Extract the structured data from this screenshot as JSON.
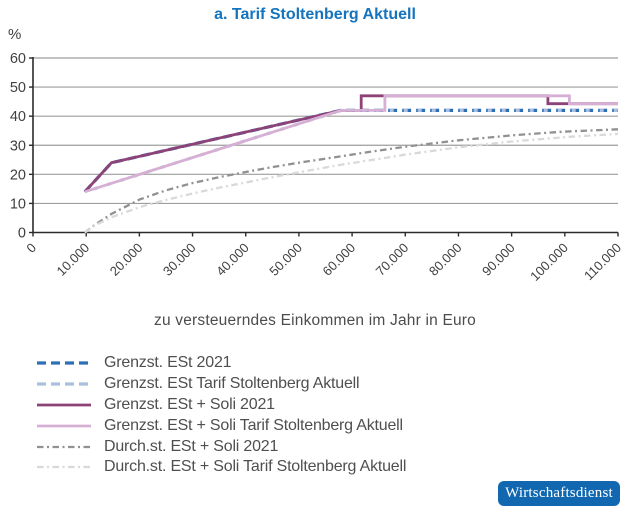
{
  "title": "a. Tarif Stoltenberg Aktuell",
  "y_unit": "%",
  "xlabel": "zu versteuerndes Einkommen im Jahr in Euro",
  "badge": "Wirtschaftsdienst",
  "colors": {
    "title": "#1474bd",
    "badge_bg": "#1168b1",
    "axis": "#2b2b2b",
    "grid": "#9e9e9e",
    "tick_text": "#3f3f3f",
    "legend_text": "#4f4f4f"
  },
  "chart_data": {
    "type": "line",
    "title": "a. Tarif Stoltenberg Aktuell",
    "xlabel": "zu versteuerndes Einkommen im Jahr in Euro",
    "ylabel": "%",
    "xlim": [
      0,
      110000
    ],
    "ylim": [
      0,
      60
    ],
    "x_tick_values": [
      0,
      10000,
      20000,
      30000,
      40000,
      50000,
      60000,
      70000,
      80000,
      90000,
      100000,
      110000
    ],
    "x_tick_labels": [
      "0",
      "10.000",
      "20.000",
      "30.000",
      "40.000",
      "50.000",
      "60.000",
      "70.000",
      "80.000",
      "90.000",
      "100.000",
      "110.000"
    ],
    "y_tick_values": [
      0,
      10,
      20,
      30,
      40,
      50,
      60
    ],
    "y_tick_labels": [
      "0",
      "10",
      "20",
      "30",
      "40",
      "50",
      "60"
    ],
    "grid": "horizontal",
    "legend_position": "bottom-left",
    "series": [
      {
        "name": "Grenzst. ESt 2021",
        "color": "#2d6fb5",
        "style": "dashed",
        "width": 3.2,
        "points": [
          [
            9744,
            14
          ],
          [
            14753,
            24
          ],
          [
            57918,
            42
          ],
          [
            110000,
            42
          ]
        ]
      },
      {
        "name": "Grenzst. ESt Tarif Stoltenberg Aktuell",
        "color": "#aabfdf",
        "style": "dashed-offset",
        "width": 3.2,
        "points": [
          [
            9744,
            14
          ],
          [
            57918,
            42
          ],
          [
            110000,
            42
          ]
        ]
      },
      {
        "name": "Grenzst. ESt + Soli 2021",
        "color": "#8d4377",
        "style": "solid",
        "width": 2.8,
        "points": [
          [
            9744,
            14
          ],
          [
            14753,
            24
          ],
          [
            57918,
            42
          ],
          [
            61717,
            42
          ],
          [
            61717,
            47
          ],
          [
            96820,
            47
          ],
          [
            96820,
            44.3
          ],
          [
            110000,
            44.3
          ]
        ]
      },
      {
        "name": "Grenzst. ESt + Soli Tarif Stoltenberg Aktuell",
        "color": "#d6b0d4",
        "style": "solid",
        "width": 2.8,
        "points": [
          [
            9744,
            14
          ],
          [
            57918,
            42
          ],
          [
            66176,
            42
          ],
          [
            66176,
            47
          ],
          [
            100868,
            47
          ],
          [
            100868,
            44.3
          ],
          [
            110000,
            44.3
          ]
        ]
      },
      {
        "name": "Durch.st. ESt + Soli 2021",
        "color": "#919191",
        "style": "dashdot",
        "width": 2.3,
        "points": [
          [
            9744,
            0
          ],
          [
            12000,
            3.1
          ],
          [
            14753,
            6.4
          ],
          [
            20000,
            11.3
          ],
          [
            25000,
            14.5
          ],
          [
            30000,
            17.0
          ],
          [
            35000,
            19.0
          ],
          [
            40000,
            20.8
          ],
          [
            45000,
            22.5
          ],
          [
            50000,
            24.0
          ],
          [
            57918,
            26.2
          ],
          [
            61717,
            27.3
          ],
          [
            70000,
            29.5
          ],
          [
            80000,
            31.7
          ],
          [
            90000,
            33.4
          ],
          [
            96820,
            34.3
          ],
          [
            100000,
            34.7
          ],
          [
            110000,
            35.5
          ]
        ]
      },
      {
        "name": "Durch.st. ESt + Soli Tarif Stoltenberg Aktuell",
        "color": "#d9d9d9",
        "style": "dashdot",
        "width": 2.3,
        "points": [
          [
            9744,
            0
          ],
          [
            12000,
            2.8
          ],
          [
            15000,
            5.4
          ],
          [
            20000,
            8.7
          ],
          [
            25000,
            11.2
          ],
          [
            30000,
            13.4
          ],
          [
            35000,
            15.4
          ],
          [
            40000,
            17.2
          ],
          [
            45000,
            19.0
          ],
          [
            50000,
            20.7
          ],
          [
            57918,
            23.3
          ],
          [
            66176,
            25.6
          ],
          [
            70000,
            26.8
          ],
          [
            80000,
            29.3
          ],
          [
            90000,
            31.3
          ],
          [
            100868,
            32.9
          ],
          [
            110000,
            33.9
          ]
        ]
      }
    ]
  }
}
